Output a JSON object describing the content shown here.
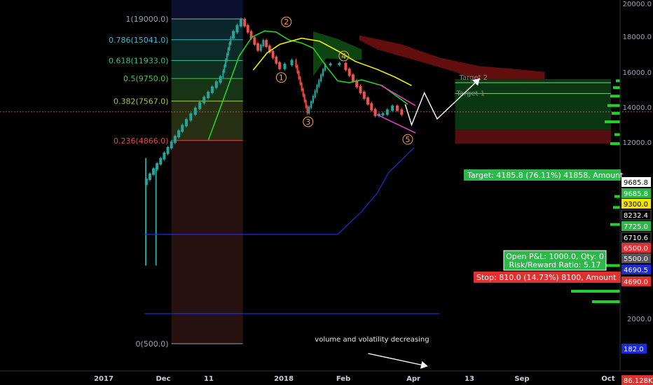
{
  "chart_data": {
    "type": "candlestick",
    "title": "",
    "xlabel": "",
    "ylabel": "",
    "price_scale": "log",
    "grid": false,
    "time_axis_labels": [
      "2017",
      "Dec",
      "11",
      "2018",
      "Feb",
      "Apr",
      "13",
      "Sep",
      "Oct"
    ],
    "price_axis_labels": [
      "20000.0",
      "18000.0",
      "16000.0",
      "14000.0",
      "12000.0",
      "2000.0"
    ],
    "fib_levels": [
      {
        "label": "1(19000.0)",
        "price": 19000,
        "color": "#9aa3b0"
      },
      {
        "label": "0.786(15041.0)",
        "price": 15041,
        "color": "#3fb8c9"
      },
      {
        "label": "0.618(11933.0)",
        "price": 11933,
        "color": "#3cc28a"
      },
      {
        "label": "0.5(9750.0)",
        "price": 9750,
        "color": "#4cc24c"
      },
      {
        "label": "0.382(7567.0)",
        "price": 7567,
        "color": "#a5c83c"
      },
      {
        "label": "0.236(4866.0)",
        "price": 4866,
        "color": "#e24a4a"
      },
      {
        "label": "0(500.0)",
        "price": 500,
        "color": "#9aa3b0"
      }
    ],
    "candle_path": [
      [
        "2017-10-01",
        3000
      ],
      [
        "2017-10-15",
        4000
      ],
      [
        "2017-11-01",
        5800
      ],
      [
        "2017-11-15",
        7500
      ],
      [
        "2017-12-01",
        10000
      ],
      [
        "2017-12-08",
        15500
      ],
      [
        "2017-12-17",
        19000
      ],
      [
        "2017-12-30",
        13500
      ],
      [
        "2018-01-03",
        15000
      ],
      [
        "2018-01-16",
        11000
      ],
      [
        "2018-01-27",
        12000
      ],
      [
        "2018-02-06",
        6700
      ],
      [
        "2018-02-20",
        11500
      ],
      [
        "2018-03-06",
        11600
      ],
      [
        "2018-04-01",
        6500
      ],
      [
        "2018-04-07",
        6600
      ],
      [
        "2018-04-15",
        7200
      ],
      [
        "2018-04-22",
        6600
      ]
    ],
    "wave_labels": [
      {
        "label": "1",
        "date": "2018-01-16",
        "price": 11000
      },
      {
        "label": "2",
        "date": "2018-01-20",
        "price": 17000
      },
      {
        "label": "3",
        "date": "2018-02-06",
        "price": 6700
      },
      {
        "label": "4",
        "date": "2018-03-06",
        "price": 11600
      },
      {
        "label": "5",
        "date": "2018-04-25",
        "price": 5500
      }
    ],
    "price_badges": [
      {
        "value": "9685.8",
        "bg": "#ffffff",
        "fg": "#000000"
      },
      {
        "value": "9685.8",
        "bg": "#2db84a",
        "fg": "#ffffff"
      },
      {
        "value": "9300.0",
        "bg": "#f2e600",
        "fg": "#000000"
      },
      {
        "value": "8232.4",
        "bg": "#000000",
        "fg": "#ffffff"
      },
      {
        "value": "7725.0",
        "bg": "#2db84a",
        "fg": "#ffffff"
      },
      {
        "value": "6710.6",
        "bg": "#000000",
        "fg": "#ffffff"
      },
      {
        "value": "6500.0",
        "bg": "#e03030",
        "fg": "#ffffff"
      },
      {
        "value": "5500.0",
        "bg": "#555555",
        "fg": "#ffffff"
      },
      {
        "value": "4690.5",
        "bg": "#1a2bd6",
        "fg": "#ffffff"
      },
      {
        "value": "4690.0",
        "bg": "#e03030",
        "fg": "#ffffff"
      },
      {
        "value": "182.0",
        "bg": "#1a2bd6",
        "fg": "#ffffff"
      },
      {
        "value": "86.128K",
        "bg": "#e03030",
        "fg": "#ffffff"
      }
    ],
    "position_tool": {
      "target_text": "Target: 4185.8 (76.11%) 41858, Amount",
      "stop_text": "Stop: 810.0 (14.73%) 8100, Amount",
      "pnl_text": "Open P&L: 1000.0, Qty: 0",
      "ratio_text": "Risk/Reward Ratio: 5.17",
      "target1_label": "Target 1",
      "target2_label": "Target 2"
    },
    "annotation": "volume and volatility decreasing"
  },
  "colors": {
    "background": "#000000",
    "up_candle": "#26a69a",
    "down_candle": "#ef5350",
    "ma_fast": "#22d12a",
    "ma_slow": "#f0f000",
    "wedge": "#e040c0",
    "volatility_line": "#1c2fd8",
    "arrow": "#ffffff"
  }
}
